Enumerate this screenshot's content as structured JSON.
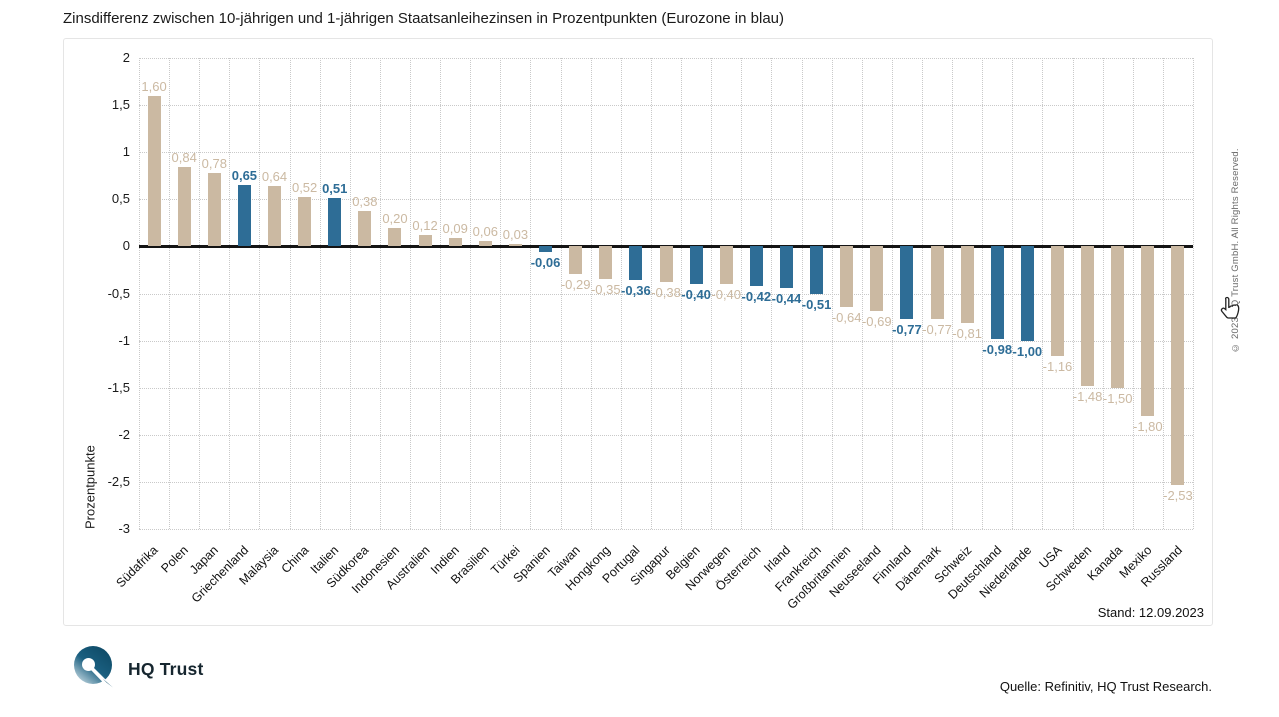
{
  "page": {
    "title": "Zinsdifferenz zwischen 10-jährigen und 1-jährigen Staatsanleihezinsen in Prozentpunkten (Eurozone in blau)",
    "stand": "Stand: 12.09.2023",
    "quelle": "Quelle: Refinitiv, HQ Trust Research.",
    "copyright": "© 2023 HQ Trust GmbH. All Rights Reserved.",
    "logo_text": "HQ Trust"
  },
  "chart_data": {
    "type": "bar",
    "title": "Zinsdifferenz zwischen 10-jährigen und 1-jährigen Staatsanleihezinsen in Prozentpunkten (Eurozone in blau)",
    "xlabel": "",
    "ylabel": "Prozentpunkte",
    "ylim": [
      -3,
      2
    ],
    "grid": "dotted horizontal and vertical, solid black zero line",
    "legend_hint": "Eurozone in blau",
    "bar_colors": {
      "standard": "#cbb9a2",
      "eurozone": "#2e6d96"
    },
    "ytick_values": [
      2,
      1.5,
      1,
      0.5,
      0,
      -0.5,
      -1,
      -1.5,
      -2,
      -2.5,
      -3
    ],
    "ytick_labels": [
      "2",
      "1,5",
      "1",
      "0,5",
      "0",
      "-0,5",
      "-1",
      "-1,5",
      "-2",
      "-2,5",
      "-3"
    ],
    "categories": [
      "Südafrika",
      "Polen",
      "Japan",
      "Griechenland",
      "Malaysia",
      "China",
      "Italien",
      "Südkorea",
      "Indonesien",
      "Australien",
      "Indien",
      "Brasilien",
      "Türkei",
      "Spanien",
      "Taiwan",
      "Hongkong",
      "Portugal",
      "Singapur",
      "Belgien",
      "Norwegen",
      "Österreich",
      "Irland",
      "Frankreich",
      "Großbritannien",
      "Neuseeland",
      "Finnland",
      "Dänemark",
      "Schweiz",
      "Deutschland",
      "Niederlande",
      "USA",
      "Schweden",
      "Kanada",
      "Mexiko",
      "Russland"
    ],
    "values": [
      1.6,
      0.84,
      0.78,
      0.65,
      0.64,
      0.52,
      0.51,
      0.38,
      0.2,
      0.12,
      0.09,
      0.06,
      0.03,
      -0.06,
      -0.29,
      -0.35,
      -0.36,
      -0.38,
      -0.4,
      -0.4,
      -0.42,
      -0.44,
      -0.51,
      -0.64,
      -0.69,
      -0.77,
      -0.77,
      -0.81,
      -0.98,
      -1.0,
      -1.16,
      -1.48,
      -1.5,
      -1.8,
      -2.53
    ],
    "value_labels": [
      "1,60",
      "0,84",
      "0,78",
      "0,65",
      "0,64",
      "0,52",
      "0,51",
      "0,38",
      "0,20",
      "0,12",
      "0,09",
      "0,06",
      "0,03",
      "-0,06",
      "-0,29",
      "-0,35",
      "-0,36",
      "-0,38",
      "-0,40",
      "-0,40",
      "-0,42",
      "-0,44",
      "-0,51",
      "-0,64",
      "-0,69",
      "-0,77",
      "-0,77",
      "-0,81",
      "-0,98",
      "-1,00",
      "-1,16",
      "-1,48",
      "-1,50",
      "-1,80",
      "-2,53"
    ],
    "eurozone": [
      false,
      false,
      false,
      true,
      false,
      false,
      true,
      false,
      false,
      false,
      false,
      false,
      false,
      true,
      false,
      false,
      true,
      false,
      true,
      false,
      true,
      true,
      true,
      false,
      false,
      true,
      false,
      false,
      true,
      true,
      false,
      false,
      false,
      false,
      false
    ]
  }
}
